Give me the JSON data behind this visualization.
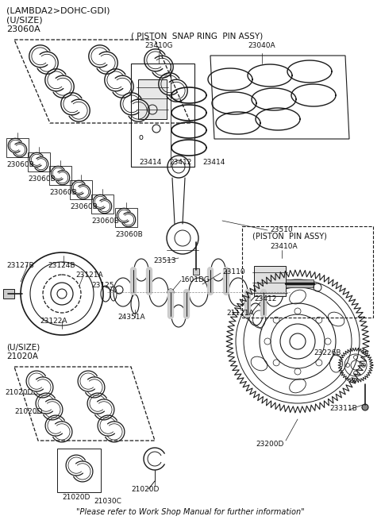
{
  "bg_color": "#ffffff",
  "lc": "#1a1a1a",
  "tc": "#111111",
  "title1": "(LAMBDA2>DOHC-GDI)",
  "title2": "(U/SIZE)",
  "title3": "23060A",
  "snap_header": "( PISTON  SNAP RING  PIN ASSY)",
  "bottom_note": "\"Please refer to Work Shop Manual for further information\"",
  "figsize": [
    4.8,
    6.55
  ],
  "dpi": 100
}
